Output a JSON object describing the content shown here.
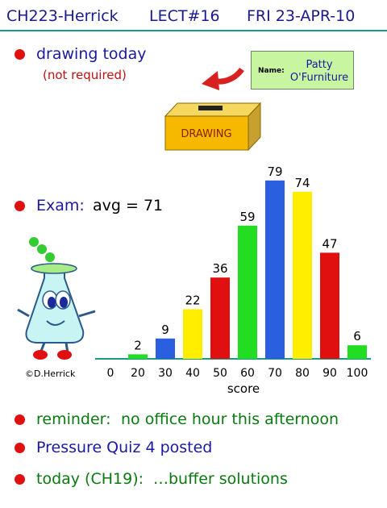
{
  "header": {
    "course": "CH223-Herrick",
    "lecture": "LECT#16",
    "date": "FRI 23-APR-10"
  },
  "bullets": {
    "drawing": "drawing today",
    "drawing_note": "(not required)",
    "exam_label": "Exam:",
    "exam_avg": "avg = 71",
    "reminder_label": "reminder:",
    "reminder_text": "no office hour this afternoon",
    "quiz": "Pressure Quiz 4 posted",
    "today": "today (CH19):",
    "today_topic": "…buffer solutions"
  },
  "name_card": {
    "label": "Name:",
    "name_line1": "Patty",
    "name_line2": "O'Furniture"
  },
  "drawing_box_label": "DRAWING",
  "copyright": "©D.Herrick",
  "chart_data": {
    "type": "bar",
    "xlabel": "score",
    "ylabel": "",
    "title": "",
    "ticks": [
      "0",
      "20",
      "30",
      "40",
      "50",
      "60",
      "70",
      "80",
      "90",
      "100"
    ],
    "categories": [
      "20",
      "30",
      "40",
      "50",
      "60",
      "70",
      "80",
      "90",
      "100"
    ],
    "values": [
      2,
      9,
      22,
      36,
      59,
      79,
      74,
      47,
      6
    ],
    "colors": [
      "#22dd22",
      "#2a5fe0",
      "#ffee00",
      "#e01010",
      "#22dd22",
      "#2a5fe0",
      "#ffee00",
      "#e01010",
      "#22dd22"
    ],
    "ylim": [
      0,
      80
    ],
    "grid": false,
    "legend": "none"
  }
}
